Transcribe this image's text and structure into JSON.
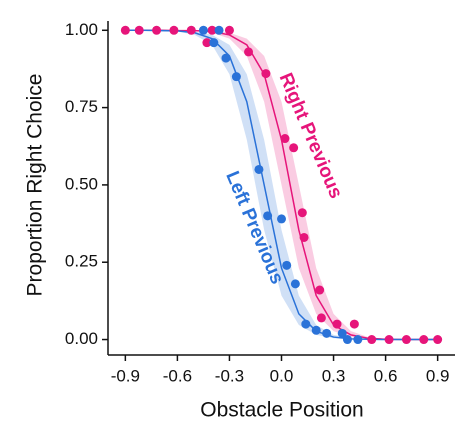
{
  "chart_data": {
    "type": "scatter",
    "xlabel": "Obstacle Position",
    "ylabel": "Proportion Right Choice",
    "xlim": [
      -1.0,
      1.0
    ],
    "ylim": [
      -0.05,
      1.03
    ],
    "xticks": [
      -0.9,
      -0.6,
      -0.3,
      {
        "value": 0,
        "label": "0.0"
      },
      0.3,
      0.6,
      0.9
    ],
    "yticks": [
      {
        "value": 0,
        "label": "0.00"
      },
      {
        "value": 0.25,
        "label": "0.25"
      },
      {
        "value": 0.5,
        "label": "0.50"
      },
      {
        "value": 0.75,
        "label": "0.75"
      },
      {
        "value": 1,
        "label": "1.00"
      }
    ],
    "series": [
      {
        "name": "Right Previous",
        "color": "#e6157a",
        "x": [
          -0.9,
          -0.82,
          -0.72,
          -0.62,
          -0.52,
          -0.43,
          -0.4,
          -0.3,
          -0.19,
          -0.09,
          0.02,
          0.07,
          0.12,
          0.13,
          0.22,
          0.23,
          0.32,
          0.42,
          0.52,
          0.62,
          0.72,
          0.82,
          0.9
        ],
        "values": [
          1,
          1,
          1,
          1,
          1,
          0.96,
          1,
          1,
          0.93,
          0.86,
          0.65,
          0.62,
          0.41,
          0.33,
          0.16,
          0.07,
          0.05,
          0.05,
          0,
          0,
          0,
          0,
          0
        ],
        "fit": {
          "x": [
            -0.9,
            -0.8,
            -0.7,
            -0.6,
            -0.5,
            -0.4,
            -0.3,
            -0.2,
            -0.1,
            0,
            0.1,
            0.2,
            0.3,
            0.4,
            0.5,
            0.6,
            0.7,
            0.8,
            0.9
          ],
          "values": [
            1,
            1,
            1,
            0.999,
            0.999,
            0.996,
            0.985,
            0.953,
            0.858,
            0.646,
            0.354,
            0.142,
            0.047,
            0.015,
            0.004,
            0.001,
            0,
            0,
            0
          ],
          "upper": [
            1,
            1,
            1,
            1,
            0.999,
            0.998,
            0.992,
            0.973,
            0.917,
            0.769,
            0.5,
            0.231,
            0.083,
            0.027,
            0.008,
            0.002,
            0.001,
            0,
            0
          ],
          "lower": [
            1,
            1,
            1,
            0.999,
            0.998,
            0.992,
            0.973,
            0.917,
            0.769,
            0.5,
            0.231,
            0.083,
            0.027,
            0.008,
            0.002,
            0.001,
            0,
            0,
            0
          ]
        }
      },
      {
        "name": "Left Previous",
        "color": "#2a72d8",
        "x": [
          -0.45,
          -0.39,
          -0.36,
          -0.32,
          -0.26,
          -0.13,
          -0.08,
          0.0,
          0.03,
          0.08,
          0.14,
          0.2,
          0.26,
          0.35,
          0.38,
          0.44
        ],
        "values": [
          1,
          0.96,
          1,
          0.91,
          0.85,
          0.55,
          0.4,
          0.39,
          0.24,
          0.18,
          0.05,
          0.03,
          0.02,
          0.02,
          0,
          0
        ],
        "fit": {
          "x": [
            -0.9,
            -0.8,
            -0.7,
            -0.6,
            -0.5,
            -0.4,
            -0.3,
            -0.2,
            -0.1,
            0,
            0.1,
            0.2,
            0.3,
            0.4,
            0.5,
            0.6,
            0.7,
            0.8,
            0.9
          ],
          "values": [
            1,
            1,
            0.999,
            0.998,
            0.992,
            0.973,
            0.917,
            0.769,
            0.5,
            0.231,
            0.083,
            0.027,
            0.008,
            0.002,
            0.001,
            0,
            0,
            0,
            0
          ],
          "upper": [
            1,
            1,
            1,
            0.999,
            0.996,
            0.985,
            0.953,
            0.858,
            0.646,
            0.354,
            0.142,
            0.047,
            0.015,
            0.004,
            0.001,
            0,
            0,
            0,
            0
          ],
          "lower": [
            1,
            1,
            0.999,
            0.996,
            0.985,
            0.953,
            0.858,
            0.646,
            0.354,
            0.142,
            0.047,
            0.015,
            0.004,
            0.001,
            0,
            0,
            0,
            0,
            0
          ]
        }
      }
    ]
  }
}
